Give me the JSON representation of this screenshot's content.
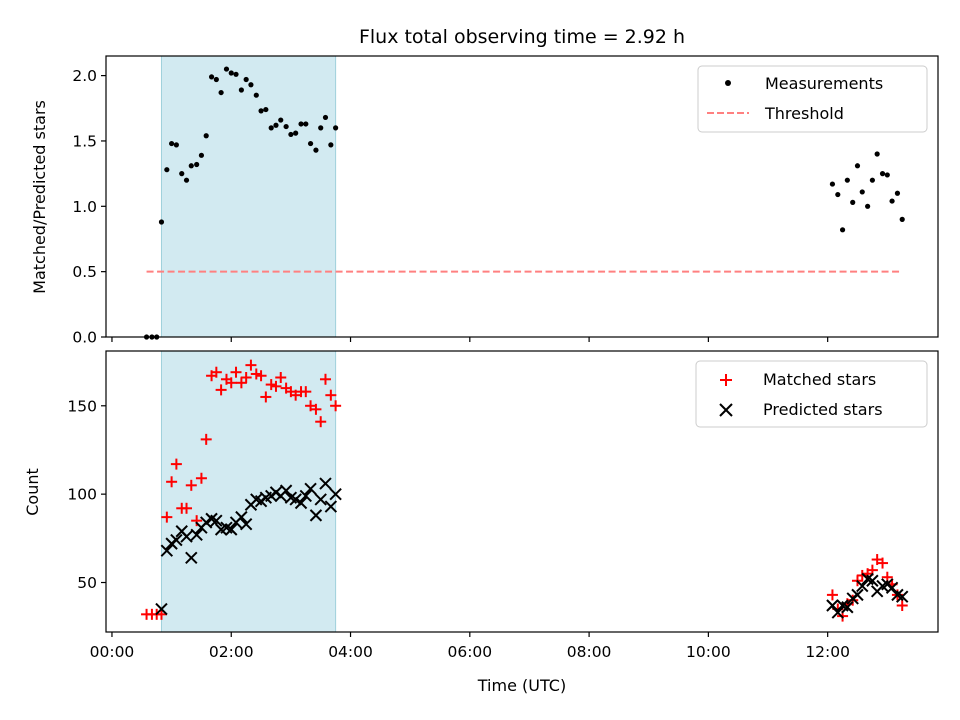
{
  "chart_data": [
    {
      "type": "scatter",
      "title": "Flux total observing time = 2.92 h",
      "xlabel": "",
      "ylabel": "Matched/Predicted stars",
      "x_unit": "hours UTC",
      "xlim": [
        -0.1,
        13.85
      ],
      "ylim": [
        0,
        2.15
      ],
      "yticks": [
        0.0,
        0.5,
        1.0,
        1.5,
        2.0
      ],
      "ytick_labels": [
        "0.0",
        "0.5",
        "1.0",
        "1.5",
        "2.0"
      ],
      "shaded_region": {
        "x0": 0.83,
        "x1": 3.75,
        "color": "#add8e6"
      },
      "legend_position": "top-right",
      "series": [
        {
          "name": "Measurements",
          "kind": "scatter",
          "color": "#000000",
          "x": [
            0.58,
            0.67,
            0.75,
            0.83,
            0.92,
            1.0,
            1.08,
            1.17,
            1.25,
            1.33,
            1.42,
            1.5,
            1.58,
            1.67,
            1.75,
            1.83,
            1.92,
            2.0,
            2.08,
            2.17,
            2.25,
            2.33,
            2.42,
            2.5,
            2.58,
            2.67,
            2.75,
            2.83,
            2.92,
            3.0,
            3.08,
            3.17,
            3.25,
            3.33,
            3.42,
            3.5,
            3.58,
            3.67,
            3.75,
            12.08,
            12.17,
            12.25,
            12.33,
            12.42,
            12.5,
            12.58,
            12.67,
            12.75,
            12.83,
            12.92,
            13.0,
            13.08,
            13.17,
            13.25
          ],
          "y": [
            0.0,
            0.0,
            0.0,
            0.88,
            1.28,
            1.48,
            1.47,
            1.25,
            1.2,
            1.31,
            1.32,
            1.39,
            1.54,
            1.99,
            1.97,
            1.87,
            2.05,
            2.02,
            2.01,
            1.89,
            1.97,
            1.93,
            1.85,
            1.73,
            1.74,
            1.6,
            1.62,
            1.66,
            1.61,
            1.55,
            1.56,
            1.63,
            1.63,
            1.48,
            1.43,
            1.6,
            1.68,
            1.47,
            1.6,
            1.17,
            1.09,
            0.82,
            1.2,
            1.03,
            1.31,
            1.11,
            1.0,
            1.2,
            1.4,
            1.25,
            1.24,
            1.04,
            1.1,
            0.9
          ]
        },
        {
          "name": "Threshold",
          "kind": "dashed-line",
          "color": "#ff8080",
          "x": [
            0.58,
            13.25
          ],
          "y": [
            0.5,
            0.5
          ]
        }
      ]
    },
    {
      "type": "scatter",
      "title": "",
      "xlabel": "Time (UTC)",
      "ylabel": "Count",
      "x_unit": "hours UTC",
      "xlim": [
        -0.1,
        13.85
      ],
      "ylim": [
        22,
        181
      ],
      "yticks": [
        50,
        100,
        150
      ],
      "ytick_labels": [
        "50",
        "100",
        "150"
      ],
      "xticks": [
        0,
        2,
        4,
        6,
        8,
        10,
        12
      ],
      "xtick_labels": [
        "00:00",
        "02:00",
        "04:00",
        "06:00",
        "08:00",
        "10:00",
        "12:00"
      ],
      "shaded_region": {
        "x0": 0.83,
        "x1": 3.75,
        "color": "#add8e6"
      },
      "legend_position": "top-right",
      "series": [
        {
          "name": "Matched stars",
          "kind": "plus",
          "color": "#ff0000",
          "x": [
            0.58,
            0.67,
            0.75,
            0.83,
            0.92,
            1.0,
            1.08,
            1.17,
            1.25,
            1.33,
            1.42,
            1.5,
            1.58,
            1.67,
            1.75,
            1.83,
            1.92,
            2.0,
            2.08,
            2.17,
            2.25,
            2.33,
            2.42,
            2.5,
            2.58,
            2.67,
            2.75,
            2.83,
            2.92,
            3.0,
            3.08,
            3.17,
            3.25,
            3.33,
            3.42,
            3.5,
            3.58,
            3.67,
            3.75,
            12.08,
            12.17,
            12.25,
            12.33,
            12.42,
            12.5,
            12.58,
            12.67,
            12.75,
            12.83,
            12.92,
            13.0,
            13.08,
            13.17,
            13.25
          ],
          "y": [
            32,
            32,
            32,
            32,
            87,
            107,
            117,
            92,
            92,
            105,
            85,
            109,
            131,
            167,
            169,
            159,
            165,
            163,
            169,
            163,
            166,
            173,
            168,
            167,
            155,
            162,
            161,
            166,
            160,
            158,
            156,
            158,
            158,
            150,
            148,
            141,
            165,
            156,
            150,
            43,
            35,
            31,
            38,
            40,
            51,
            54,
            55,
            57,
            63,
            61,
            53,
            49,
            43,
            37
          ]
        },
        {
          "name": "Predicted stars",
          "kind": "x",
          "color": "#000000",
          "x": [
            0.83,
            0.92,
            1.0,
            1.08,
            1.17,
            1.25,
            1.33,
            1.42,
            1.5,
            1.58,
            1.67,
            1.75,
            1.83,
            1.92,
            2.0,
            2.08,
            2.17,
            2.25,
            2.33,
            2.42,
            2.5,
            2.58,
            2.67,
            2.75,
            2.83,
            2.92,
            3.0,
            3.08,
            3.17,
            3.25,
            3.33,
            3.42,
            3.5,
            3.58,
            3.67,
            3.75,
            12.08,
            12.17,
            12.25,
            12.33,
            12.42,
            12.5,
            12.58,
            12.67,
            12.75,
            12.83,
            12.92,
            13.0,
            13.08,
            13.17,
            13.25
          ],
          "y": [
            35,
            68,
            72,
            74,
            79,
            76,
            64,
            77,
            81,
            84,
            86,
            85,
            80,
            81,
            80,
            84,
            87,
            83,
            94,
            97,
            96,
            98,
            99,
            101,
            99,
            102,
            98,
            97,
            95,
            99,
            103,
            88,
            97,
            106,
            93,
            100,
            37,
            33,
            37,
            36,
            41,
            43,
            48,
            52,
            51,
            45,
            48,
            49,
            47,
            43,
            42
          ]
        }
      ]
    }
  ]
}
